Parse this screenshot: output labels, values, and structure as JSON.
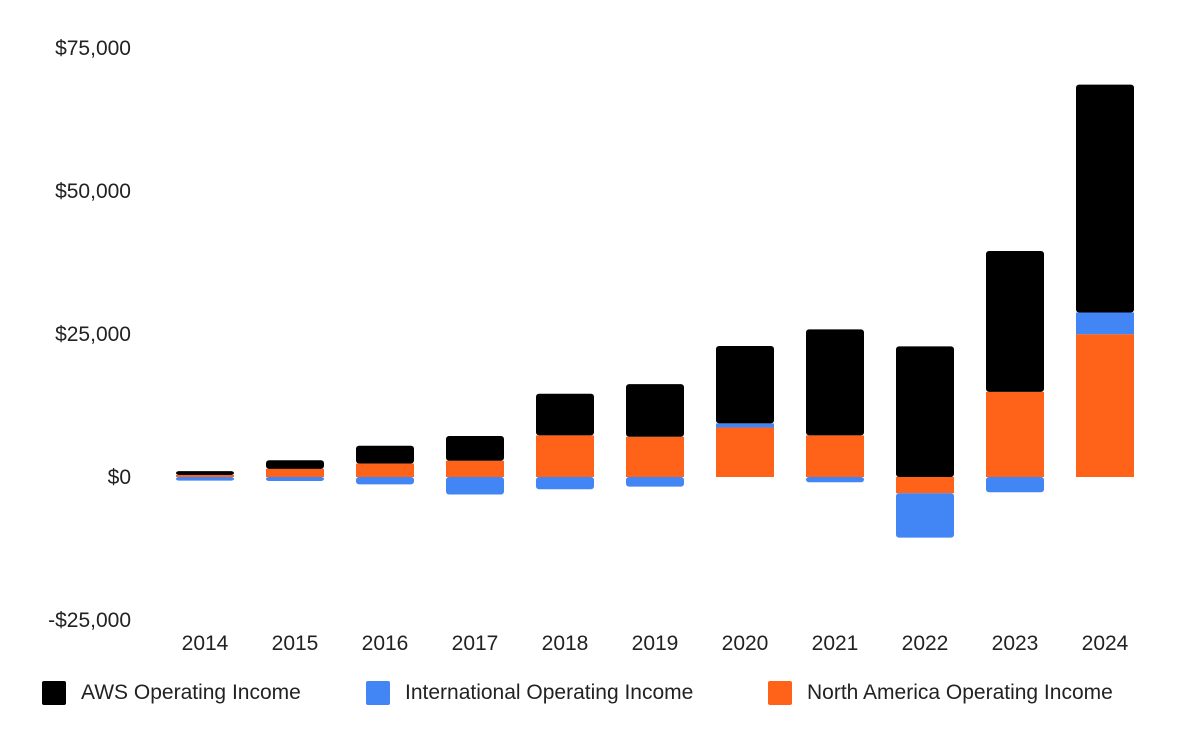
{
  "chart_data": {
    "type": "bar",
    "stacked": true,
    "title": "",
    "xlabel": "",
    "ylabel": "",
    "categories": [
      "2014",
      "2015",
      "2016",
      "2017",
      "2018",
      "2019",
      "2020",
      "2021",
      "2022",
      "2023",
      "2024"
    ],
    "series": [
      {
        "name": "North America Operating Income",
        "color": "#ff6319",
        "values": [
          360,
          1425,
          2361,
          2837,
          7267,
          7033,
          8651,
          7271,
          -2847,
          14877,
          24967
        ]
      },
      {
        "name": "International Operating Income",
        "color": "#4285f4",
        "values": [
          -640,
          -699,
          -1283,
          -3062,
          -2142,
          -1693,
          717,
          -924,
          -7746,
          -2656,
          3792
        ]
      },
      {
        "name": "AWS Operating Income",
        "color": "#000000",
        "values": [
          660,
          1507,
          3108,
          4331,
          7296,
          9201,
          13531,
          18532,
          22841,
          24631,
          39834
        ]
      }
    ],
    "ylim": [
      -25000,
      75000
    ],
    "yticks": [
      -25000,
      0,
      25000,
      50000,
      75000
    ],
    "ytick_labels": [
      "-$25,000",
      "$0",
      "$25,000",
      "$50,000",
      "$75,000"
    ],
    "legend": {
      "position": "bottom-left",
      "order": [
        "AWS Operating Income",
        "International Operating Income",
        "North America Operating Income"
      ]
    },
    "grid": false
  }
}
